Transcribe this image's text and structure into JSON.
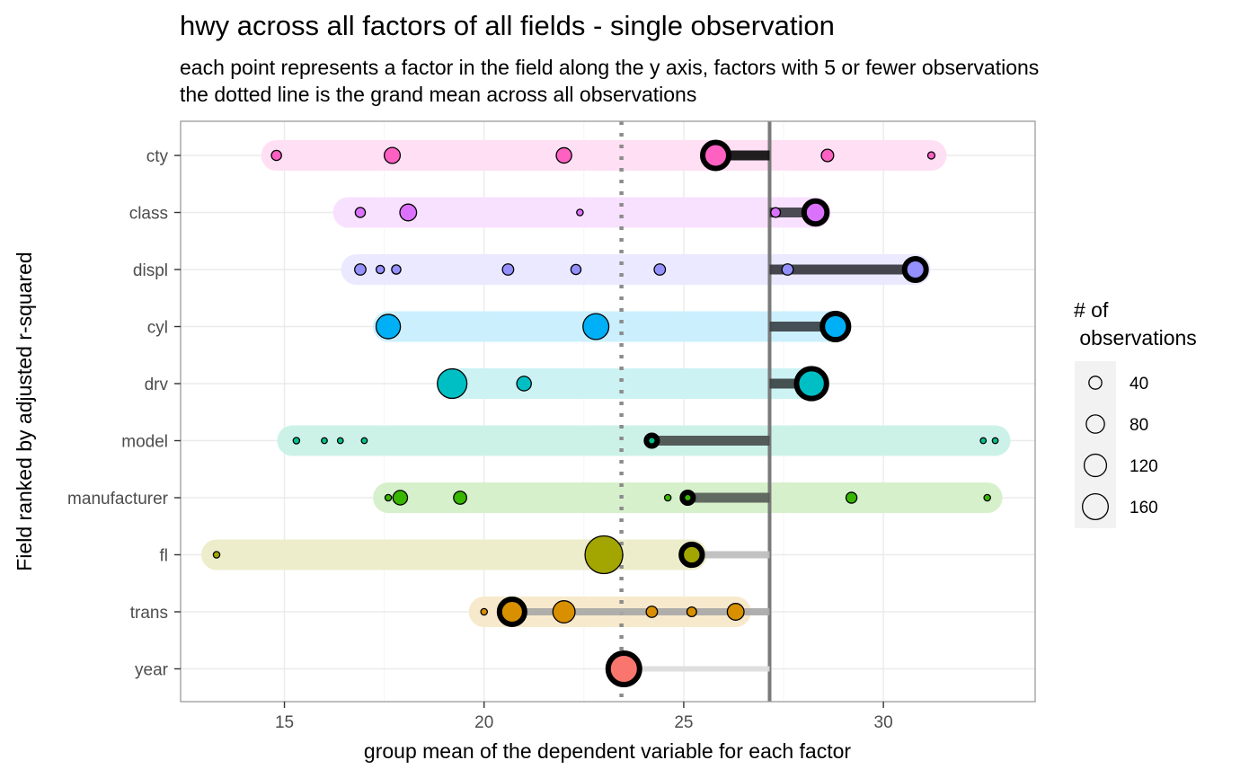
{
  "chart_data": {
    "type": "scatter",
    "title": "hwy across all factors of all fields - single observation",
    "subtitle": [
      "each point represents a factor in the field along the y axis, factors with 5 or fewer observations",
      "the dotted line is the grand mean across all observations"
    ],
    "xlabel": "group mean of the dependent variable for each factor",
    "ylabel": "Field ranked by adjusted r-squared",
    "xlim": [
      12.4,
      33.8
    ],
    "x_ticks": [
      "15",
      "20",
      "25",
      "30"
    ],
    "x_tick_values": [
      15,
      20,
      25,
      30
    ],
    "grid": true,
    "grand_mean": 23.44,
    "reference_line": 27.15,
    "legend": {
      "title": [
        "# of",
        " observations"
      ],
      "placement": "right",
      "labels": [
        "40",
        "80",
        "120",
        "160"
      ],
      "values": [
        40,
        80,
        120,
        160
      ]
    },
    "fields": [
      {
        "name": "cty",
        "color": "#FF61C3",
        "band": "#FFDFF3",
        "range": [
          14.8,
          31.2
        ],
        "selected": {
          "x": 25.8,
          "n": 80
        },
        "lineColor": "#0d0d0d",
        "lineWidth": 11,
        "points": [
          {
            "x": 14.8,
            "n": 12
          },
          {
            "x": 17.7,
            "n": 30
          },
          {
            "x": 22.0,
            "n": 28
          },
          {
            "x": 28.6,
            "n": 18
          },
          {
            "x": 31.2,
            "n": 6
          }
        ]
      },
      {
        "name": "class",
        "color": "#DB72FB",
        "band": "#F8E1FE",
        "range": [
          16.6,
          28.3
        ],
        "selected": {
          "x": 28.3,
          "n": 62
        },
        "lineColor": "#3d3d44",
        "lineWidth": 11,
        "points": [
          {
            "x": 16.9,
            "n": 12
          },
          {
            "x": 18.1,
            "n": 33
          },
          {
            "x": 22.4,
            "n": 5
          },
          {
            "x": 27.3,
            "n": 11
          }
        ]
      },
      {
        "name": "displ",
        "color": "#9590FF",
        "band": "#EAE9FF",
        "range": [
          16.8,
          30.8
        ],
        "selected": {
          "x": 30.8,
          "n": 55
        },
        "lineColor": "#36363f",
        "lineWidth": 11,
        "points": [
          {
            "x": 16.9,
            "n": 15
          },
          {
            "x": 17.4,
            "n": 8
          },
          {
            "x": 17.8,
            "n": 10
          },
          {
            "x": 20.6,
            "n": 15
          },
          {
            "x": 22.3,
            "n": 12
          },
          {
            "x": 24.4,
            "n": 15
          },
          {
            "x": 27.6,
            "n": 15
          }
        ]
      },
      {
        "name": "cyl",
        "color": "#00B0F6",
        "band": "#CCEFFD",
        "range": [
          17.6,
          28.8
        ],
        "selected": {
          "x": 28.8,
          "n": 81
        },
        "lineColor": "#3a4248",
        "lineWidth": 11,
        "points": [
          {
            "x": 17.6,
            "n": 70
          },
          {
            "x": 22.8,
            "n": 79
          }
        ]
      },
      {
        "name": "drv",
        "color": "#00BFC4",
        "band": "#CCF2F3",
        "range": [
          19.2,
          28.2
        ],
        "selected": {
          "x": 28.2,
          "n": 106
        },
        "lineColor": "#394243",
        "lineWidth": 11,
        "points": [
          {
            "x": 19.2,
            "n": 103
          },
          {
            "x": 21.0,
            "n": 25
          }
        ]
      },
      {
        "name": "model",
        "color": "#00C08B",
        "band": "#CCF2E8",
        "range": [
          15.2,
          32.8
        ],
        "selected": {
          "x": 24.2,
          "n": 14
        },
        "lineColor": "#4a4f4c",
        "lineWidth": 11,
        "points": [
          {
            "x": 15.3,
            "n": 5
          },
          {
            "x": 16.0,
            "n": 4
          },
          {
            "x": 16.4,
            "n": 4
          },
          {
            "x": 17.0,
            "n": 4
          },
          {
            "x": 32.5,
            "n": 4
          },
          {
            "x": 32.8,
            "n": 4
          }
        ]
      },
      {
        "name": "manufacturer",
        "color": "#39B600",
        "band": "#D7F0CC",
        "range": [
          17.6,
          32.6
        ],
        "selected": {
          "x": 25.1,
          "n": 14
        },
        "lineColor": "#575e57",
        "lineWidth": 11,
        "points": [
          {
            "x": 17.6,
            "n": 5
          },
          {
            "x": 17.9,
            "n": 25
          },
          {
            "x": 19.4,
            "n": 20
          },
          {
            "x": 24.6,
            "n": 5
          },
          {
            "x": 29.2,
            "n": 14
          },
          {
            "x": 32.6,
            "n": 5
          }
        ]
      },
      {
        "name": "fl",
        "color": "#A3A500",
        "band": "#EDEDCC",
        "range": [
          13.3,
          25.2
        ],
        "selected": {
          "x": 25.2,
          "n": 52
        },
        "lineColor": "#bdbdbd",
        "lineWidth": 8,
        "points": [
          {
            "x": 13.3,
            "n": 5
          },
          {
            "x": 23.0,
            "n": 168
          }
        ]
      },
      {
        "name": "trans",
        "color": "#D89000",
        "band": "#F7E9CC",
        "range": [
          20.0,
          26.3
        ],
        "selected": {
          "x": 20.7,
          "n": 75
        },
        "lineColor": "#a8a8a8",
        "lineWidth": 8,
        "points": [
          {
            "x": 20.0,
            "n": 5
          },
          {
            "x": 22.0,
            "n": 58
          },
          {
            "x": 24.2,
            "n": 15
          },
          {
            "x": 25.2,
            "n": 11
          },
          {
            "x": 26.3,
            "n": 33
          }
        ]
      },
      {
        "name": "year",
        "color": "#F8766D",
        "band": "",
        "range": [
          23.5,
          23.5
        ],
        "selected": {
          "x": 23.5,
          "n": 117
        },
        "lineColor": "#dcdcdc",
        "lineWidth": 6,
        "points": []
      }
    ]
  }
}
